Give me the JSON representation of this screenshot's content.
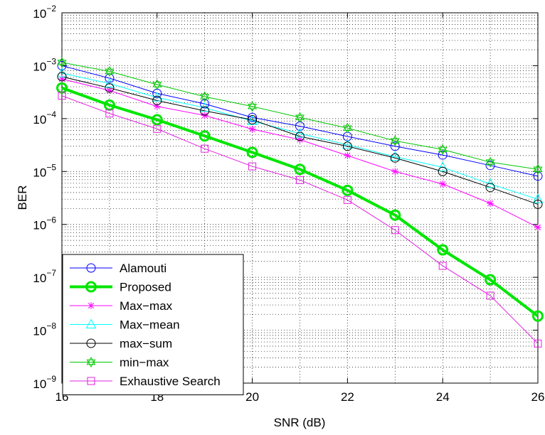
{
  "chart_data": {
    "type": "line",
    "title": "",
    "xlabel": "SNR (dB)",
    "ylabel": "BER",
    "y_scale": "log",
    "xlim": [
      16,
      26
    ],
    "ylim": [
      1e-09,
      0.01
    ],
    "grid": true,
    "legend_position": "bottom-left",
    "x_ticks": [
      {
        "value": 16,
        "label": "16"
      },
      {
        "value": 18,
        "label": "18"
      },
      {
        "value": 20,
        "label": "20"
      },
      {
        "value": 22,
        "label": "22"
      },
      {
        "value": 24,
        "label": "24"
      },
      {
        "value": 26,
        "label": "26"
      }
    ],
    "y_ticks": [
      {
        "value": 0.01,
        "base": "10",
        "exp": "−2"
      },
      {
        "value": 0.001,
        "base": "10",
        "exp": "−3"
      },
      {
        "value": 0.0001,
        "base": "10",
        "exp": "−4"
      },
      {
        "value": 1e-05,
        "base": "10",
        "exp": "−5"
      },
      {
        "value": 1e-06,
        "base": "10",
        "exp": "−6"
      },
      {
        "value": 1e-07,
        "base": "10",
        "exp": "−7"
      },
      {
        "value": 1e-08,
        "base": "10",
        "exp": "−8"
      },
      {
        "value": 1e-09,
        "base": "10",
        "exp": "−9"
      }
    ],
    "x": [
      16,
      17,
      18,
      19,
      20,
      21,
      22,
      23,
      24,
      25,
      26
    ],
    "series": [
      {
        "name": "Alamouti",
        "color": "#0000ff",
        "marker": "circle",
        "bold": false,
        "values": [
          0.001,
          0.00058,
          0.0003,
          0.00019,
          0.000105,
          7.2e-05,
          4.6e-05,
          3e-05,
          2.05e-05,
          1.3e-05,
          8.2e-06
        ]
      },
      {
        "name": "Proposed",
        "color": "#00e600",
        "marker": "circle",
        "bold": true,
        "values": [
          0.00038,
          0.00018,
          9.5e-05,
          4.7e-05,
          2.3e-05,
          1.1e-05,
          4.4e-06,
          1.5e-06,
          3.3e-07,
          9e-08,
          1.85e-08
        ]
      },
      {
        "name": "Max−max",
        "color": "#ff00ff",
        "marker": "asterisk",
        "bold": false,
        "values": [
          0.00056,
          0.00034,
          0.00017,
          0.000115,
          6.3e-05,
          4e-05,
          2e-05,
          1e-05,
          5.8e-06,
          2.5e-06,
          8.8e-07
        ]
      },
      {
        "name": "Max−mean",
        "color": "#00ffff",
        "marker": "triangle",
        "bold": false,
        "values": [
          0.00072,
          0.00046,
          0.00025,
          0.00016,
          9e-05,
          5.2e-05,
          3.2e-05,
          1.9e-05,
          1.2e-05,
          5.8e-06,
          3e-06
        ]
      },
      {
        "name": "max−sum",
        "color": "#000000",
        "marker": "circle",
        "bold": false,
        "values": [
          0.00062,
          0.00038,
          0.00022,
          0.00014,
          9.5e-05,
          4.6e-05,
          3e-05,
          1.8e-05,
          1e-05,
          5e-06,
          2.4e-06
        ]
      },
      {
        "name": "min−max",
        "color": "#00c800",
        "marker": "hexagram",
        "bold": false,
        "values": [
          0.00115,
          0.00078,
          0.00044,
          0.00026,
          0.00017,
          0.000105,
          6.6e-05,
          3.8e-05,
          2.6e-05,
          1.5e-05,
          1.1e-05
        ]
      },
      {
        "name": "Exhaustive Search",
        "color": "#e020e0",
        "marker": "square",
        "bold": false,
        "values": [
          0.00027,
          0.000125,
          6.4e-05,
          2.7e-05,
          1.25e-05,
          6.9e-06,
          2.9e-06,
          7.8e-07,
          1.65e-07,
          4.5e-08,
          5.6e-09
        ]
      }
    ]
  }
}
